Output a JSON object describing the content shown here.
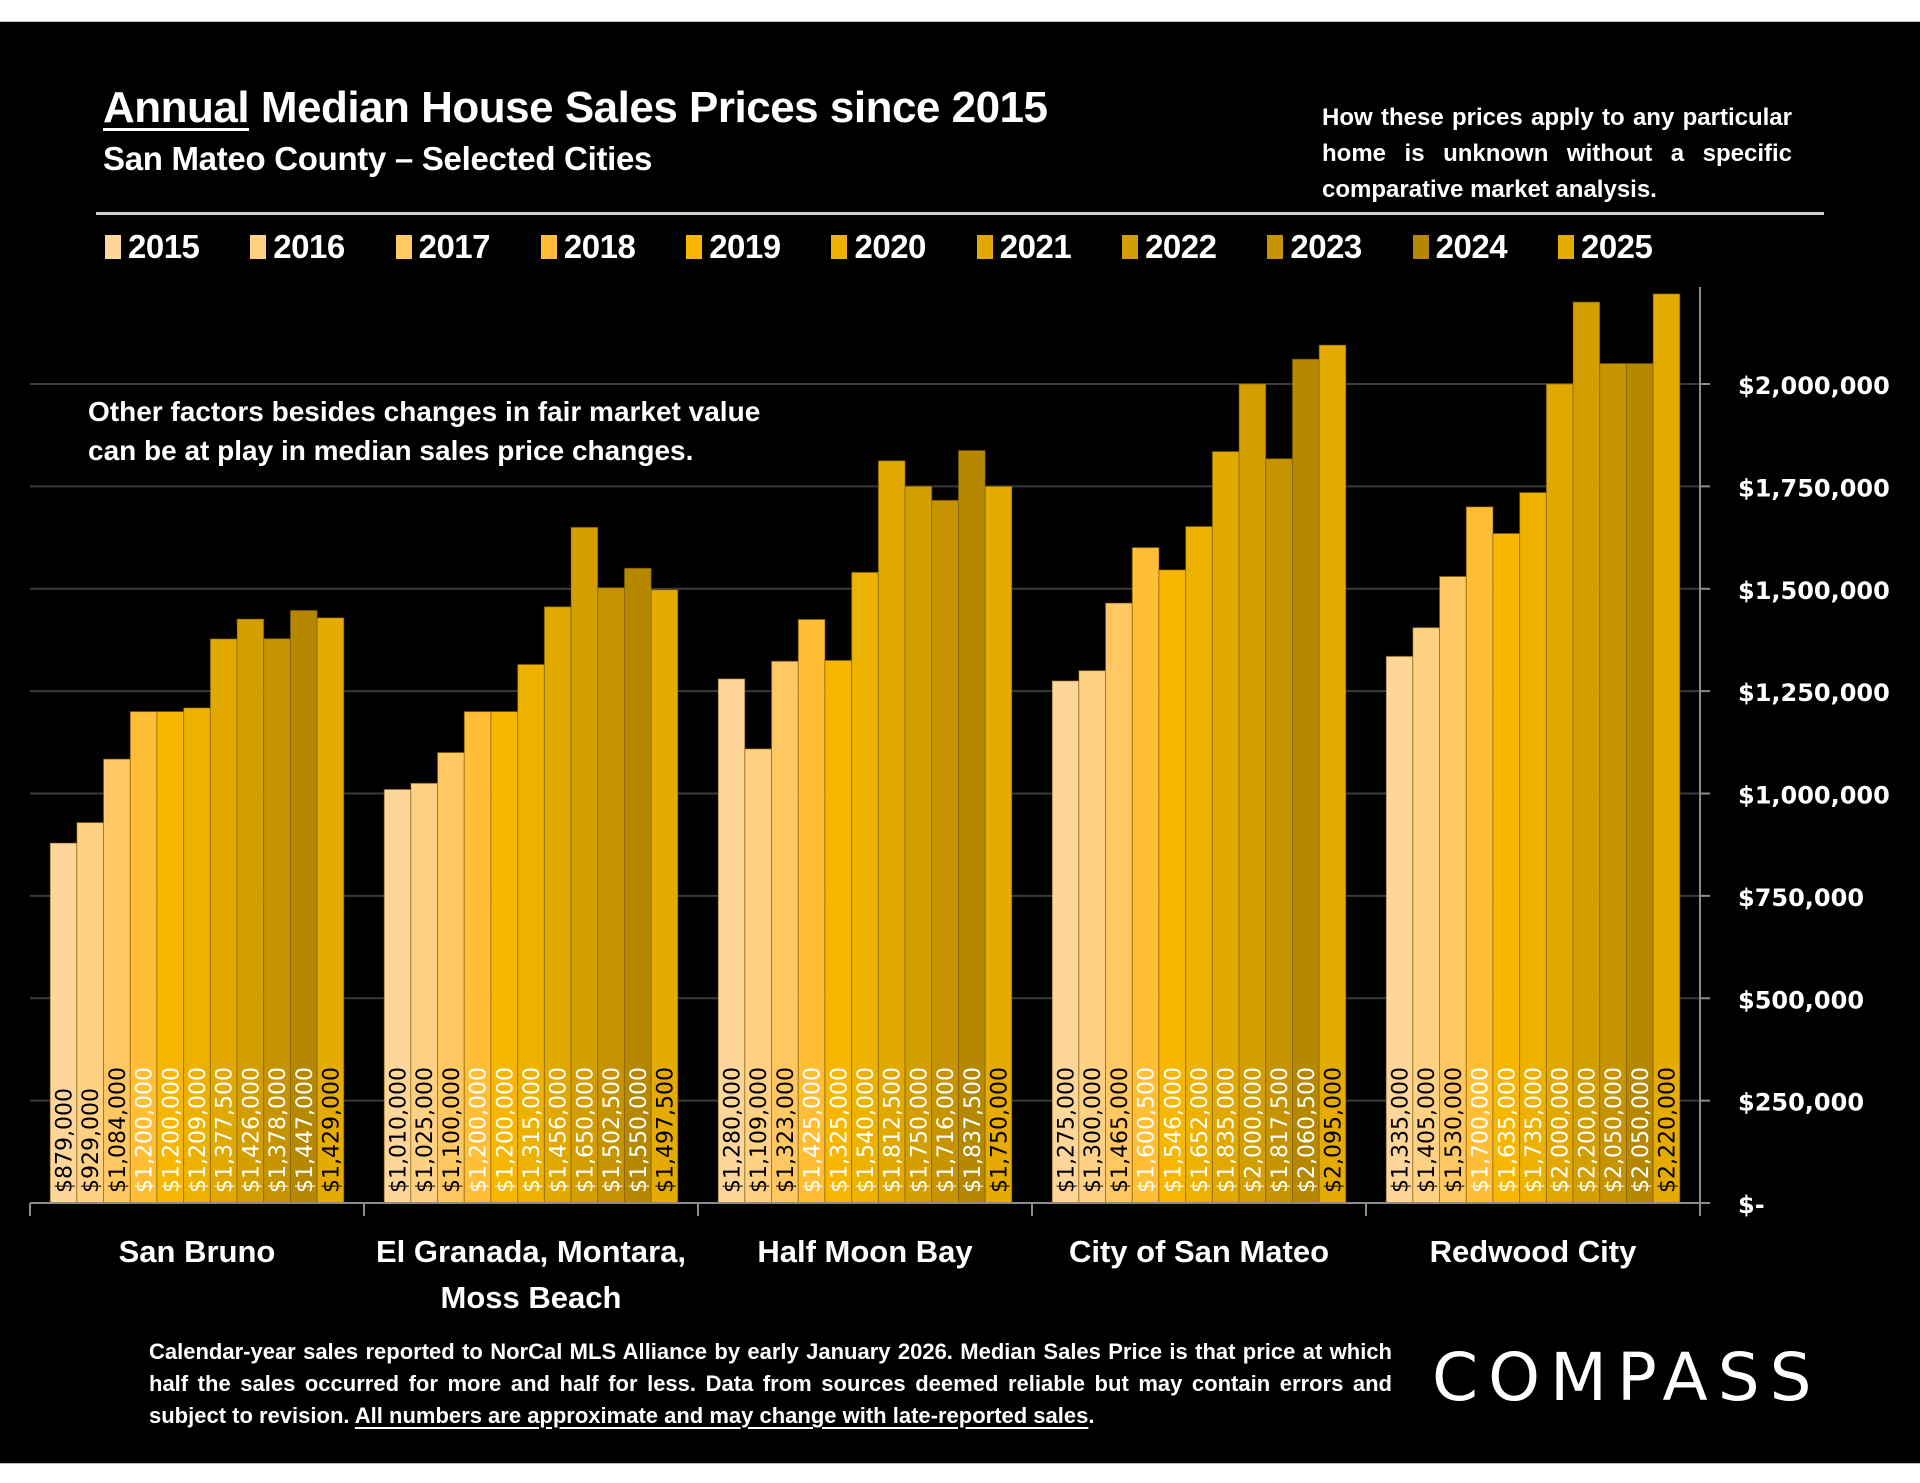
{
  "header": {
    "title_underlined": "Annual",
    "title_rest": " Median House Sales Prices since 2015",
    "subtitle": "San Mateo County – Selected Cities",
    "disclaimer_right": "How these prices apply to any particular home is unknown without a specific comparative market analysis."
  },
  "note_left": {
    "line1": "Other factors besides changes in fair market value",
    "line2": "can be at play in median sales price changes."
  },
  "footer": {
    "text": "Calendar-year sales reported to NorCal MLS Alliance by early January 2026. Median Sales Price is that price at which half the sales occurred for more and half for less. Data from sources deemed reliable but may contain errors and subject to revision. ",
    "underlined": "All numbers are approximate and may change with late-reported sales",
    "end": "."
  },
  "brand": {
    "logo_text": "COMPASS"
  },
  "chart_data": {
    "type": "bar",
    "title": "Annual Median House Sales Prices since 2015",
    "subtitle": "San Mateo County – Selected Cities",
    "xlabel": "",
    "ylabel": "",
    "ylim": [
      0,
      2250000
    ],
    "y_axis_position": "right",
    "grid": true,
    "legend_position": "top",
    "y_ticks": [
      0,
      250000,
      500000,
      750000,
      1000000,
      1250000,
      1500000,
      1750000,
      2000000
    ],
    "y_tick_labels": [
      "$-",
      "$250,000",
      "$500,000",
      "$750,000",
      "$1,000,000",
      "$1,250,000",
      "$1,500,000",
      "$1,750,000",
      "$2,000,000"
    ],
    "categories": [
      "San Bruno",
      "El Granada, Montara, Moss Beach",
      "Half Moon Bay",
      "City of San Mateo",
      "Redwood City"
    ],
    "category_label_lines": [
      [
        "San Bruno"
      ],
      [
        "El Granada, Montara,",
        "Moss Beach"
      ],
      [
        "Half Moon Bay"
      ],
      [
        "City of San Mateo"
      ],
      [
        "Redwood City"
      ]
    ],
    "series": [
      {
        "name": "2015",
        "color": "#FFD699",
        "label_color": "#000000",
        "values": [
          879000,
          1010000,
          1280000,
          1275000,
          1335000
        ],
        "labels": [
          "$879,000",
          "$1,010,000",
          "$1,280,000",
          "$1,275,000",
          "$1,335,000"
        ]
      },
      {
        "name": "2016",
        "color": "#FFD184",
        "label_color": "#000000",
        "values": [
          929000,
          1025000,
          1109000,
          1300000,
          1405000
        ],
        "labels": [
          "$929,000",
          "$1,025,000",
          "$1,109,000",
          "$1,300,000",
          "$1,405,000"
        ]
      },
      {
        "name": "2017",
        "color": "#FFC862",
        "label_color": "#000000",
        "values": [
          1084000,
          1100000,
          1323000,
          1465000,
          1530000
        ],
        "labels": [
          "$1,084,000",
          "$1,100,000",
          "$1,323,000",
          "$1,465,000",
          "$1,530,000"
        ]
      },
      {
        "name": "2018",
        "color": "#FFBE35",
        "label_color": "#FFFFFF",
        "values": [
          1200000,
          1200000,
          1425000,
          1600500,
          1700000
        ],
        "labels": [
          "$1,200,000",
          "$1,200,000",
          "$1,425,000",
          "$1,600,500",
          "$1,700,000"
        ]
      },
      {
        "name": "2019",
        "color": "#F7B700",
        "label_color": "#FFFFFF",
        "values": [
          1200000,
          1200000,
          1325000,
          1546000,
          1635000
        ],
        "labels": [
          "$1,200,000",
          "$1,200,000",
          "$1,325,000",
          "$1,546,000",
          "$1,635,000"
        ]
      },
      {
        "name": "2020",
        "color": "#EDB200",
        "label_color": "#FFFFFF",
        "values": [
          1209000,
          1315000,
          1540000,
          1652000,
          1735000
        ],
        "labels": [
          "$1,209,000",
          "$1,315,000",
          "$1,540,000",
          "$1,652,000",
          "$1,735,000"
        ]
      },
      {
        "name": "2021",
        "color": "#E1A800",
        "label_color": "#FFFFFF",
        "values": [
          1377500,
          1456000,
          1812500,
          1835000,
          2000000
        ],
        "labels": [
          "$1,377,500",
          "$1,456,000",
          "$1,812,500",
          "$1,835,000",
          "$2,000,000"
        ]
      },
      {
        "name": "2022",
        "color": "#D39E00",
        "label_color": "#FFFFFF",
        "values": [
          1426000,
          1650000,
          1750000,
          2000000,
          2200000
        ],
        "labels": [
          "$1,426,000",
          "$1,650,000",
          "$1,750,000",
          "$2,000,000",
          "$2,200,000"
        ]
      },
      {
        "name": "2023",
        "color": "#C69400",
        "label_color": "#FFFFFF",
        "values": [
          1378000,
          1502500,
          1716000,
          1817500,
          2050000
        ],
        "labels": [
          "$1,378,000",
          "$1,502,500",
          "$1,716,000",
          "$1,817,500",
          "$2,050,000"
        ]
      },
      {
        "name": "2024",
        "color": "#B58800",
        "label_color": "#FFFFFF",
        "values": [
          1447000,
          1550000,
          1837500,
          2060500,
          2050000
        ],
        "labels": [
          "$1,447,000",
          "$1,550,000",
          "$1,837,500",
          "$2,060,500",
          "$2,050,000"
        ]
      },
      {
        "name": "2025",
        "color": "#E6AB00",
        "label_color": "#000000",
        "values": [
          1429000,
          1497500,
          1750000,
          2095000,
          2220000
        ],
        "labels": [
          "$1,429,000",
          "$1,497,500",
          "$1,750,000",
          "$2,095,000",
          "$2,220,000"
        ]
      }
    ]
  }
}
